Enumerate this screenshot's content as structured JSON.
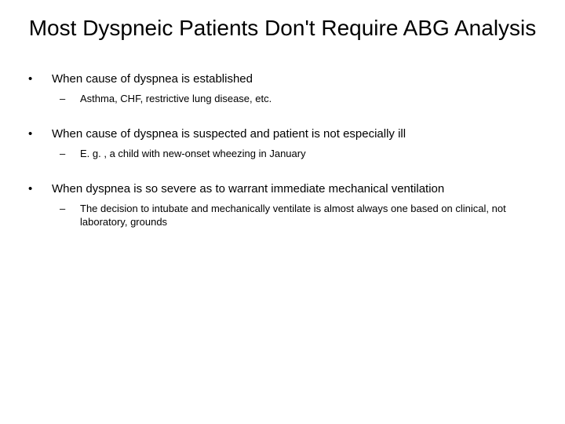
{
  "slide": {
    "title": "Most Dyspneic Patients Don't Require ABG Analysis",
    "title_fontsize": 28,
    "title_align": "center",
    "background_color": "#ffffff",
    "text_color": "#000000",
    "bullets": [
      {
        "text": "When cause of dyspnea is established",
        "sub": [
          "Asthma, CHF, restrictive lung disease, etc."
        ]
      },
      {
        "text": "When cause of dyspnea is suspected and patient is not especially ill",
        "sub": [
          "E. g. , a child with new-onset wheezing in January"
        ]
      },
      {
        "text": "When dyspnea is so severe as to warrant immediate mechanical ventilation",
        "sub": [
          "The decision to intubate and mechanically ventilate is almost always one based on clinical, not laboratory, grounds"
        ]
      }
    ],
    "level1_fontsize": 15,
    "level2_fontsize": 13,
    "level1_marker": "•",
    "level2_marker": "–"
  }
}
